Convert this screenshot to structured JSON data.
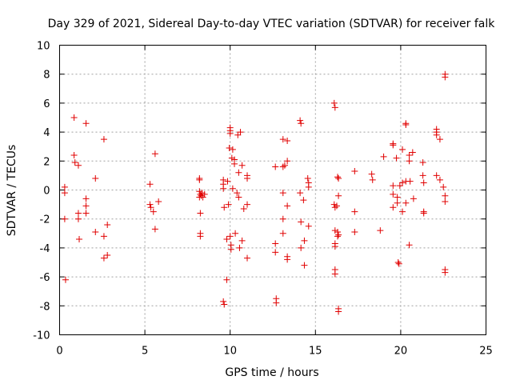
{
  "chart_data": {
    "type": "scatter",
    "title": "Day 329 of 2021, Sidereal Day-to-day VTEC variation (SDTVAR) for receiver falk",
    "xlabel": "GPS time / hours",
    "ylabel": "SDTVAR / TECUs",
    "xlim": [
      0,
      25
    ],
    "ylim": [
      -10,
      10
    ],
    "xticks": [
      0,
      5,
      10,
      15,
      20,
      25
    ],
    "yticks": [
      -10,
      -8,
      -6,
      -4,
      -2,
      0,
      2,
      4,
      6,
      8,
      10
    ],
    "grid": true,
    "marker": "plus",
    "color": "#e00000",
    "points": [
      [
        0.3,
        0.2
      ],
      [
        0.3,
        -0.2
      ],
      [
        0.3,
        -2.0
      ],
      [
        0.35,
        -6.2
      ],
      [
        0.85,
        5.0
      ],
      [
        0.85,
        2.4
      ],
      [
        0.9,
        1.9
      ],
      [
        1.1,
        1.7
      ],
      [
        1.1,
        -1.6
      ],
      [
        1.1,
        -2.0
      ],
      [
        1.15,
        -3.4
      ],
      [
        1.55,
        4.6
      ],
      [
        1.55,
        -0.6
      ],
      [
        1.55,
        -1.1
      ],
      [
        1.55,
        -1.6
      ],
      [
        2.1,
        0.8
      ],
      [
        2.1,
        -2.9
      ],
      [
        2.6,
        3.5
      ],
      [
        2.6,
        -3.2
      ],
      [
        2.6,
        -4.7
      ],
      [
        2.8,
        -4.5
      ],
      [
        2.8,
        -2.4
      ],
      [
        5.3,
        0.4
      ],
      [
        5.3,
        -1.0
      ],
      [
        5.35,
        -1.2
      ],
      [
        5.5,
        -1.5
      ],
      [
        5.6,
        2.5
      ],
      [
        5.6,
        -2.7
      ],
      [
        5.8,
        -0.8
      ],
      [
        8.2,
        0.8
      ],
      [
        8.2,
        0.7
      ],
      [
        8.2,
        -0.1
      ],
      [
        8.2,
        -0.5
      ],
      [
        8.25,
        -0.3
      ],
      [
        8.25,
        -1.6
      ],
      [
        8.25,
        -3.0
      ],
      [
        8.25,
        -3.2
      ],
      [
        8.3,
        -0.4
      ],
      [
        8.35,
        -0.2
      ],
      [
        8.4,
        -0.5
      ],
      [
        8.5,
        -0.3
      ],
      [
        9.6,
        0.7
      ],
      [
        9.6,
        0.4
      ],
      [
        9.6,
        0.1
      ],
      [
        9.65,
        -1.2
      ],
      [
        9.6,
        -7.7
      ],
      [
        9.65,
        -7.9
      ],
      [
        9.8,
        -6.2
      ],
      [
        9.8,
        -3.4
      ],
      [
        9.85,
        0.6
      ],
      [
        9.9,
        -1.0
      ],
      [
        9.95,
        2.9
      ],
      [
        10.0,
        4.3
      ],
      [
        10.0,
        4.1
      ],
      [
        10.0,
        3.9
      ],
      [
        10.0,
        -3.2
      ],
      [
        10.05,
        -3.8
      ],
      [
        10.05,
        -4.1
      ],
      [
        10.1,
        2.2
      ],
      [
        10.15,
        2.8
      ],
      [
        10.15,
        0.1
      ],
      [
        10.25,
        2.1
      ],
      [
        10.25,
        1.8
      ],
      [
        10.3,
        -3.0
      ],
      [
        10.4,
        -0.2
      ],
      [
        10.45,
        3.8
      ],
      [
        10.5,
        1.2
      ],
      [
        10.5,
        -0.5
      ],
      [
        10.55,
        -4.0
      ],
      [
        10.6,
        4.0
      ],
      [
        10.7,
        -3.5
      ],
      [
        10.7,
        1.7
      ],
      [
        10.8,
        -1.3
      ],
      [
        11.0,
        1.0
      ],
      [
        11.0,
        0.8
      ],
      [
        11.0,
        -1.0
      ],
      [
        11.0,
        -4.7
      ],
      [
        12.65,
        1.6
      ],
      [
        12.65,
        -3.7
      ],
      [
        12.65,
        -4.3
      ],
      [
        12.7,
        -7.5
      ],
      [
        12.7,
        -7.8
      ],
      [
        13.1,
        3.5
      ],
      [
        13.1,
        1.6
      ],
      [
        13.1,
        -0.2
      ],
      [
        13.1,
        -2.0
      ],
      [
        13.1,
        -3.0
      ],
      [
        13.2,
        1.7
      ],
      [
        13.35,
        3.4
      ],
      [
        13.35,
        2.0
      ],
      [
        13.35,
        -1.1
      ],
      [
        13.35,
        -4.6
      ],
      [
        13.35,
        -4.8
      ],
      [
        14.1,
        4.8
      ],
      [
        14.15,
        4.6
      ],
      [
        14.1,
        -0.2
      ],
      [
        14.15,
        -2.2
      ],
      [
        14.15,
        -4.0
      ],
      [
        14.3,
        -0.7
      ],
      [
        14.35,
        -3.5
      ],
      [
        14.35,
        -5.2
      ],
      [
        14.55,
        0.8
      ],
      [
        14.6,
        0.5
      ],
      [
        14.6,
        0.2
      ],
      [
        14.6,
        -2.5
      ],
      [
        16.1,
        6.0
      ],
      [
        16.15,
        5.7
      ],
      [
        16.1,
        -1.0
      ],
      [
        16.15,
        -1.2
      ],
      [
        16.15,
        -2.8
      ],
      [
        16.15,
        -3.7
      ],
      [
        16.15,
        -3.9
      ],
      [
        16.15,
        -5.5
      ],
      [
        16.15,
        -5.8
      ],
      [
        16.25,
        -1.1
      ],
      [
        16.3,
        0.9
      ],
      [
        16.35,
        0.8
      ],
      [
        16.35,
        -0.4
      ],
      [
        16.3,
        -2.9
      ],
      [
        16.3,
        -3.2
      ],
      [
        16.35,
        -3.1
      ],
      [
        16.35,
        -8.2
      ],
      [
        16.35,
        -8.4
      ],
      [
        17.3,
        1.3
      ],
      [
        17.3,
        -1.5
      ],
      [
        17.3,
        -2.9
      ],
      [
        18.3,
        1.1
      ],
      [
        18.35,
        0.7
      ],
      [
        18.8,
        -2.8
      ],
      [
        19.0,
        2.3
      ],
      [
        19.55,
        3.2
      ],
      [
        19.55,
        3.1
      ],
      [
        19.55,
        0.3
      ],
      [
        19.55,
        -0.3
      ],
      [
        19.55,
        -1.2
      ],
      [
        19.75,
        2.2
      ],
      [
        19.8,
        -0.5
      ],
      [
        19.8,
        -0.9
      ],
      [
        19.85,
        -5.0
      ],
      [
        19.9,
        -5.1
      ],
      [
        19.95,
        0.3
      ],
      [
        20.1,
        2.8
      ],
      [
        20.1,
        0.5
      ],
      [
        20.1,
        -1.5
      ],
      [
        20.3,
        4.6
      ],
      [
        20.3,
        4.5
      ],
      [
        20.3,
        0.6
      ],
      [
        20.3,
        -0.9
      ],
      [
        20.5,
        2.4
      ],
      [
        20.5,
        2.0
      ],
      [
        20.5,
        -3.8
      ],
      [
        20.55,
        0.6
      ],
      [
        20.7,
        2.6
      ],
      [
        20.75,
        -0.6
      ],
      [
        21.3,
        1.9
      ],
      [
        21.3,
        1.0
      ],
      [
        21.35,
        0.5
      ],
      [
        21.35,
        -1.5
      ],
      [
        21.35,
        -1.6
      ],
      [
        22.1,
        4.2
      ],
      [
        22.1,
        4.0
      ],
      [
        22.1,
        3.8
      ],
      [
        22.1,
        1.0
      ],
      [
        22.3,
        3.5
      ],
      [
        22.3,
        0.7
      ],
      [
        22.5,
        0.2
      ],
      [
        22.6,
        8.0
      ],
      [
        22.6,
        7.8
      ],
      [
        22.6,
        -0.4
      ],
      [
        22.6,
        -0.8
      ],
      [
        22.6,
        -5.5
      ],
      [
        22.6,
        -5.7
      ]
    ]
  }
}
